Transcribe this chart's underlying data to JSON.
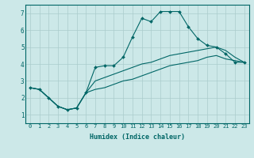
{
  "xlabel": "Humidex (Indice chaleur)",
  "ylabel": "",
  "xlim": [
    -0.5,
    23.5
  ],
  "ylim": [
    0.5,
    7.5
  ],
  "xticks": [
    0,
    1,
    2,
    3,
    4,
    5,
    6,
    7,
    8,
    9,
    10,
    11,
    12,
    13,
    14,
    15,
    16,
    17,
    18,
    19,
    20,
    21,
    22,
    23
  ],
  "yticks": [
    1,
    2,
    3,
    4,
    5,
    6,
    7
  ],
  "bg_color": "#cce8e8",
  "grid_color": "#aacccc",
  "line_color": "#006666",
  "line1_x": [
    0,
    1,
    2,
    3,
    4,
    5,
    6,
    7,
    8,
    9,
    10,
    11,
    12,
    13,
    14,
    15,
    16,
    17,
    18,
    19,
    20,
    21,
    22,
    23
  ],
  "line1_y": [
    2.6,
    2.5,
    2.0,
    1.5,
    1.3,
    1.4,
    2.3,
    3.8,
    3.9,
    3.9,
    4.4,
    5.6,
    6.7,
    6.5,
    7.1,
    7.1,
    7.1,
    6.2,
    5.5,
    5.1,
    5.0,
    4.6,
    4.1,
    4.1
  ],
  "line2_x": [
    0,
    1,
    2,
    3,
    4,
    5,
    6,
    7,
    8,
    9,
    10,
    11,
    12,
    13,
    14,
    15,
    16,
    17,
    18,
    19,
    20,
    21,
    22,
    23
  ],
  "line2_y": [
    2.6,
    2.5,
    2.0,
    1.5,
    1.3,
    1.4,
    2.3,
    3.0,
    3.2,
    3.4,
    3.6,
    3.8,
    4.0,
    4.1,
    4.3,
    4.5,
    4.6,
    4.7,
    4.8,
    4.9,
    5.0,
    4.8,
    4.4,
    4.1
  ],
  "line3_x": [
    0,
    1,
    2,
    3,
    4,
    5,
    6,
    7,
    8,
    9,
    10,
    11,
    12,
    13,
    14,
    15,
    16,
    17,
    18,
    19,
    20,
    21,
    22,
    23
  ],
  "line3_y": [
    2.6,
    2.5,
    2.0,
    1.5,
    1.3,
    1.4,
    2.3,
    2.5,
    2.6,
    2.8,
    3.0,
    3.1,
    3.3,
    3.5,
    3.7,
    3.9,
    4.0,
    4.1,
    4.2,
    4.4,
    4.5,
    4.3,
    4.2,
    4.1
  ],
  "tick_fontsize": 5,
  "xlabel_fontsize": 6
}
